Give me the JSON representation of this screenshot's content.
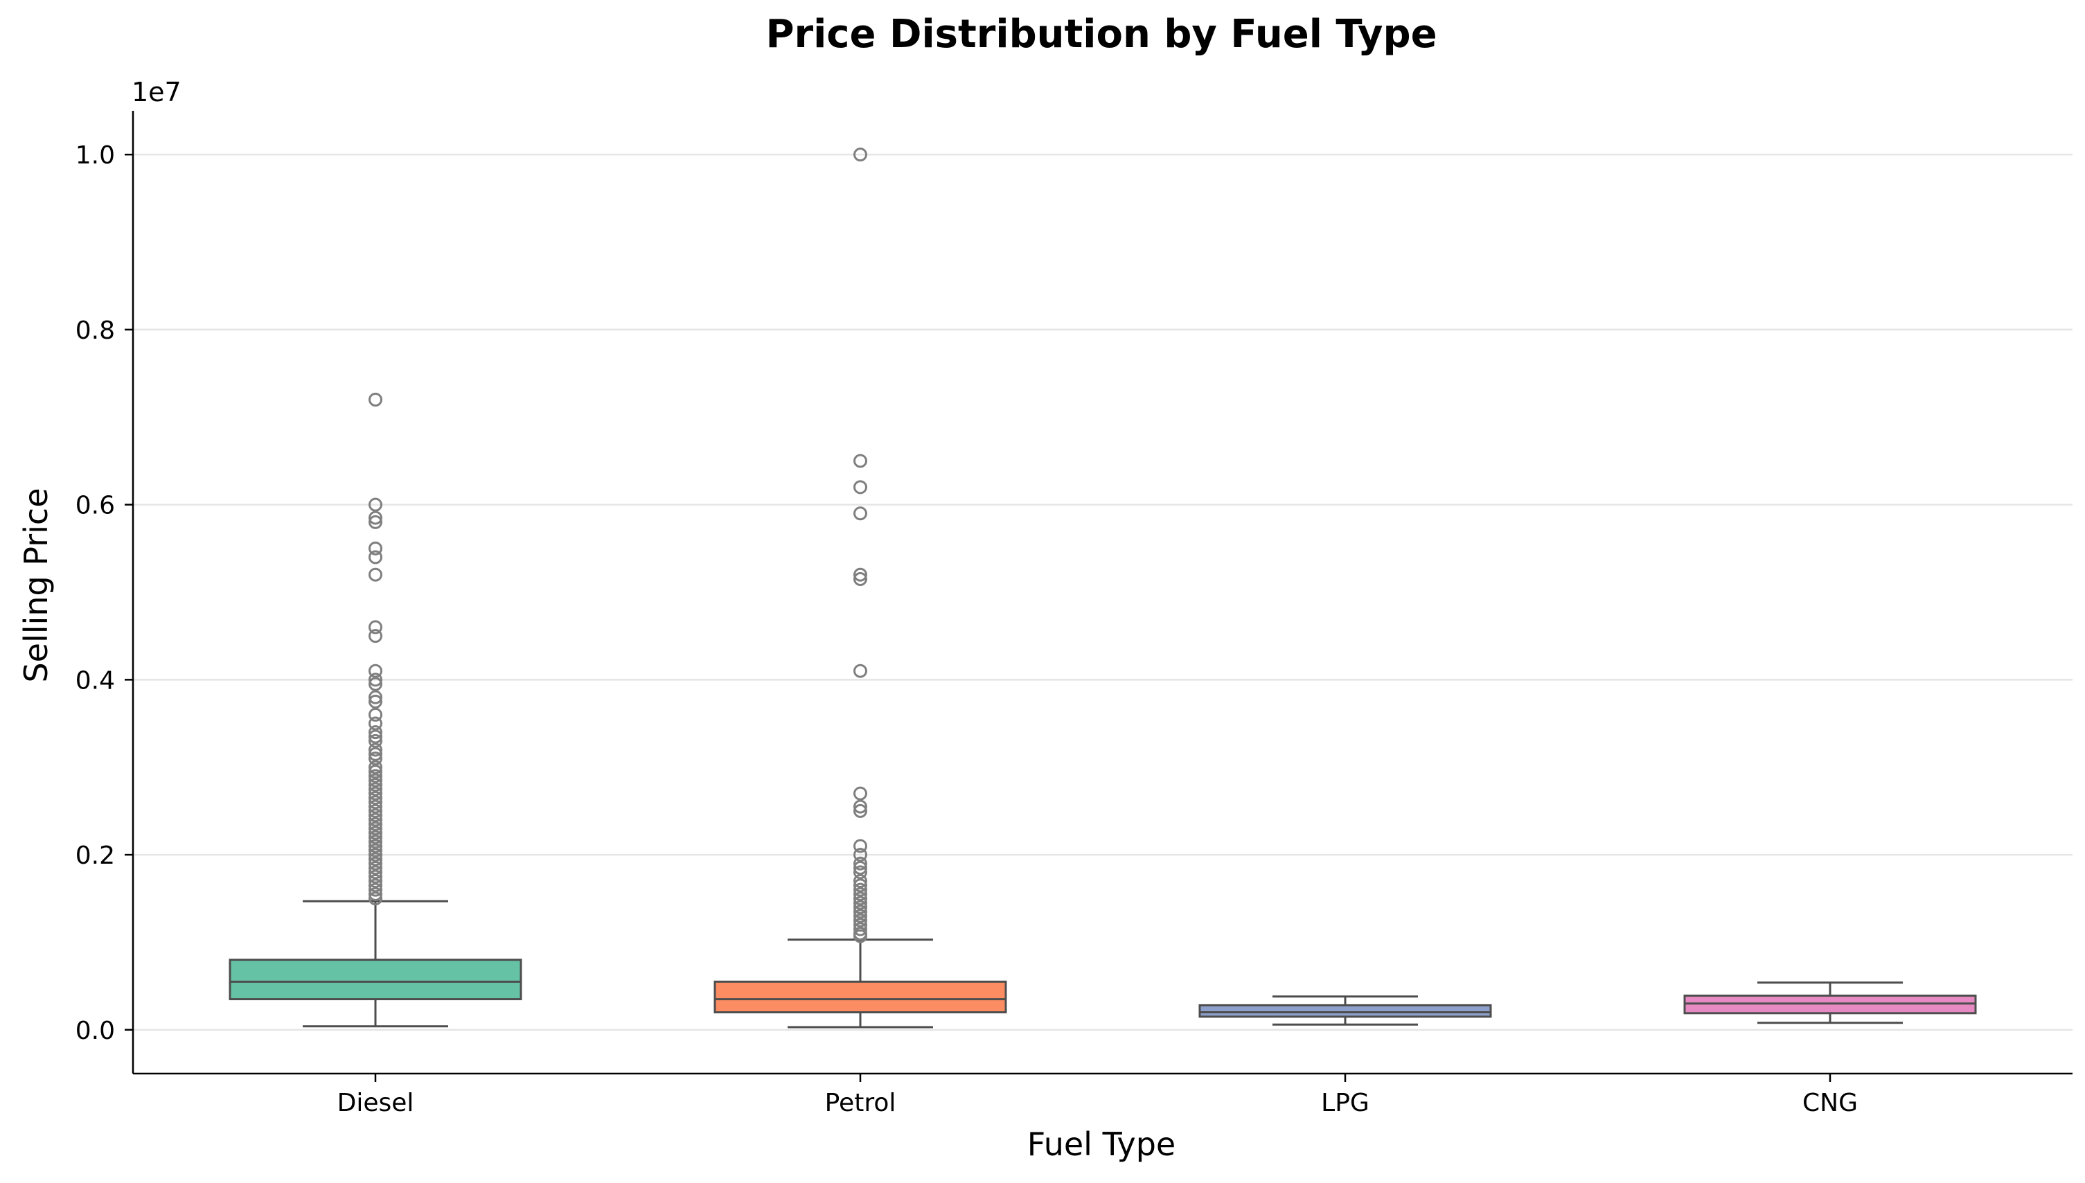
{
  "chart_data": {
    "type": "box",
    "title": "Price Distribution by Fuel Type",
    "xlabel": "Fuel Type",
    "ylabel": "Selling Price",
    "y_offset_label": "1e7",
    "y_scale_factor": 10000000,
    "ylim": [
      -0.05,
      1.05
    ],
    "yticks": [
      0.0,
      0.2,
      0.4,
      0.6,
      0.8,
      1.0
    ],
    "ytick_labels": [
      "0.0",
      "0.2",
      "0.4",
      "0.6",
      "0.8",
      "1.0"
    ],
    "grid": "horizontal",
    "categories": [
      "Diesel",
      "Petrol",
      "LPG",
      "CNG"
    ],
    "colors": [
      "#66c2a5",
      "#fc8d62",
      "#8da0cb",
      "#e78ac3"
    ],
    "outlier_color": "#7f7f7f",
    "line_color": "#4d4d4d",
    "boxes": [
      {
        "category": "Diesel",
        "whisker_low": 0.004,
        "q1": 0.035,
        "median": 0.055,
        "q3": 0.08,
        "whisker_high": 0.147,
        "outliers": [
          0.72,
          0.6,
          0.585,
          0.58,
          0.55,
          0.54,
          0.52,
          0.46,
          0.45,
          0.41,
          0.4,
          0.395,
          0.38,
          0.375,
          0.36,
          0.35,
          0.34,
          0.335,
          0.33,
          0.32,
          0.315,
          0.31,
          0.3,
          0.295,
          0.29,
          0.285,
          0.28,
          0.275,
          0.27,
          0.265,
          0.26,
          0.255,
          0.25,
          0.245,
          0.24,
          0.235,
          0.23,
          0.225,
          0.22,
          0.215,
          0.21,
          0.205,
          0.2,
          0.195,
          0.19,
          0.185,
          0.18,
          0.175,
          0.17,
          0.165,
          0.16,
          0.155,
          0.15
        ]
      },
      {
        "category": "Petrol",
        "whisker_low": 0.003,
        "q1": 0.02,
        "median": 0.035,
        "q3": 0.055,
        "whisker_high": 0.103,
        "outliers": [
          1.0,
          0.65,
          0.62,
          0.59,
          0.52,
          0.515,
          0.41,
          0.27,
          0.255,
          0.25,
          0.21,
          0.2,
          0.19,
          0.185,
          0.18,
          0.17,
          0.165,
          0.16,
          0.155,
          0.15,
          0.145,
          0.14,
          0.135,
          0.13,
          0.125,
          0.12,
          0.115,
          0.11,
          0.107
        ]
      },
      {
        "category": "LPG",
        "whisker_low": 0.006,
        "q1": 0.015,
        "median": 0.02,
        "q3": 0.028,
        "whisker_high": 0.038,
        "outliers": []
      },
      {
        "category": "CNG",
        "whisker_low": 0.008,
        "q1": 0.019,
        "median": 0.03,
        "q3": 0.039,
        "whisker_high": 0.054,
        "outliers": []
      }
    ]
  }
}
